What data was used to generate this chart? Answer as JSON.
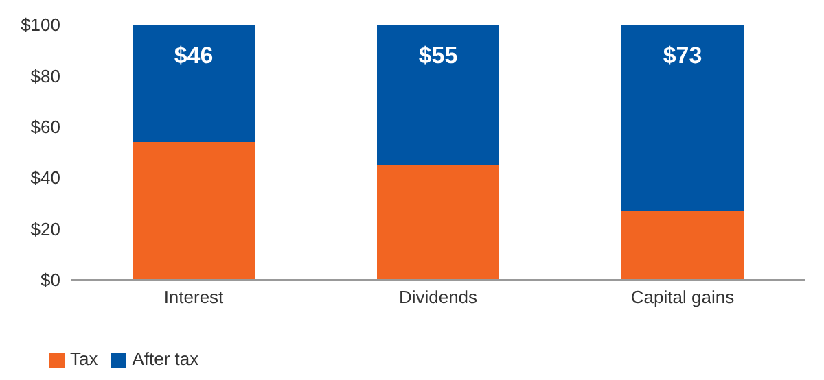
{
  "chart_data": {
    "type": "bar",
    "stacked": true,
    "categories": [
      "Interest",
      "Dividends",
      "Capital gains"
    ],
    "series": [
      {
        "name": "Tax",
        "color": "#f26522",
        "values": [
          54,
          45,
          27
        ]
      },
      {
        "name": "After tax",
        "color": "#0055a4",
        "values": [
          46,
          55,
          73
        ],
        "value_labels": [
          "$46",
          "$55",
          "$73"
        ]
      }
    ],
    "ylim": [
      0,
      100
    ],
    "yticks": [
      {
        "value": 0,
        "label": "$0"
      },
      {
        "value": 20,
        "label": "$20"
      },
      {
        "value": 40,
        "label": "$40"
      },
      {
        "value": 60,
        "label": "$60"
      },
      {
        "value": 80,
        "label": "$80"
      },
      {
        "value": 100,
        "label": "$100"
      }
    ],
    "grid": false,
    "legend": "bottom left"
  }
}
